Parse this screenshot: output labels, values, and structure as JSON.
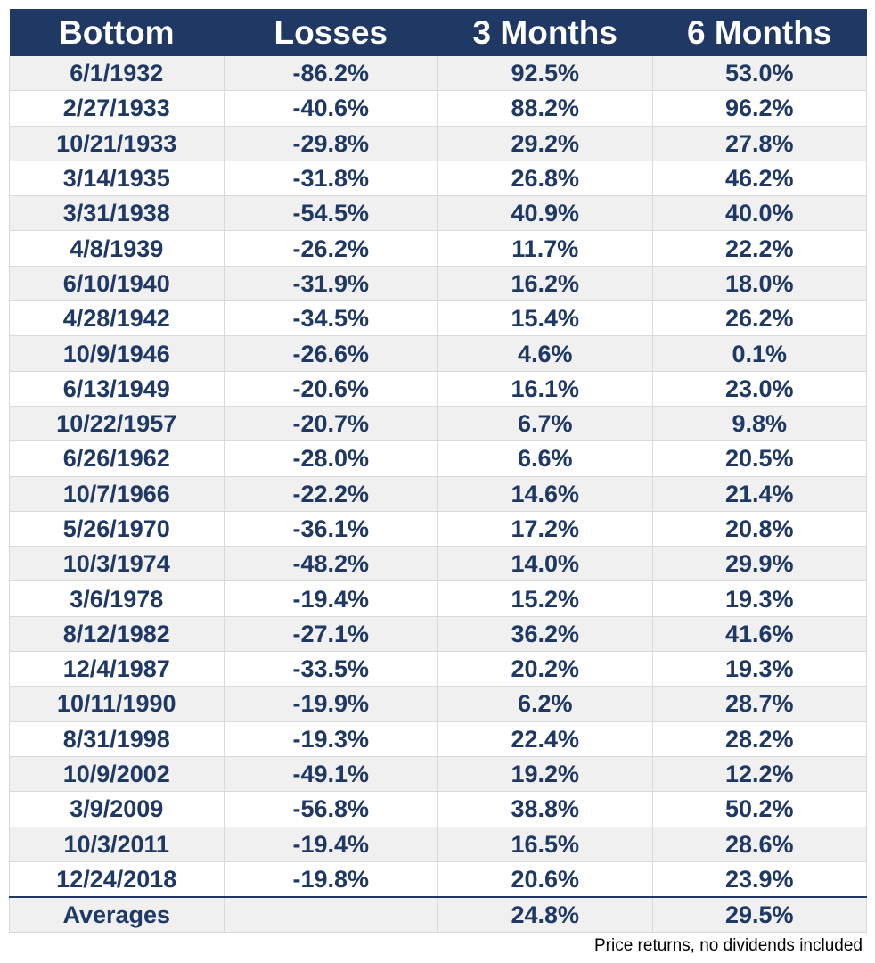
{
  "chart_data": {
    "type": "table",
    "columns": [
      "Bottom",
      "Losses",
      "3 Months",
      "6 Months"
    ],
    "rows": [
      [
        "6/1/1932",
        "-86.2%",
        "92.5%",
        "53.0%"
      ],
      [
        "2/27/1933",
        "-40.6%",
        "88.2%",
        "96.2%"
      ],
      [
        "10/21/1933",
        "-29.8%",
        "29.2%",
        "27.8%"
      ],
      [
        "3/14/1935",
        "-31.8%",
        "26.8%",
        "46.2%"
      ],
      [
        "3/31/1938",
        "-54.5%",
        "40.9%",
        "40.0%"
      ],
      [
        "4/8/1939",
        "-26.2%",
        "11.7%",
        "22.2%"
      ],
      [
        "6/10/1940",
        "-31.9%",
        "16.2%",
        "18.0%"
      ],
      [
        "4/28/1942",
        "-34.5%",
        "15.4%",
        "26.2%"
      ],
      [
        "10/9/1946",
        "-26.6%",
        "4.6%",
        "0.1%"
      ],
      [
        "6/13/1949",
        "-20.6%",
        "16.1%",
        "23.0%"
      ],
      [
        "10/22/1957",
        "-20.7%",
        "6.7%",
        "9.8%"
      ],
      [
        "6/26/1962",
        "-28.0%",
        "6.6%",
        "20.5%"
      ],
      [
        "10/7/1966",
        "-22.2%",
        "14.6%",
        "21.4%"
      ],
      [
        "5/26/1970",
        "-36.1%",
        "17.2%",
        "20.8%"
      ],
      [
        "10/3/1974",
        "-48.2%",
        "14.0%",
        "29.9%"
      ],
      [
        "3/6/1978",
        "-19.4%",
        "15.2%",
        "19.3%"
      ],
      [
        "8/12/1982",
        "-27.1%",
        "36.2%",
        "41.6%"
      ],
      [
        "12/4/1987",
        "-33.5%",
        "20.2%",
        "19.3%"
      ],
      [
        "10/11/1990",
        "-19.9%",
        "6.2%",
        "28.7%"
      ],
      [
        "8/31/1998",
        "-19.3%",
        "22.4%",
        "28.2%"
      ],
      [
        "10/9/2002",
        "-49.1%",
        "19.2%",
        "12.2%"
      ],
      [
        "3/9/2009",
        "-56.8%",
        "38.8%",
        "50.2%"
      ],
      [
        "10/3/2011",
        "-19.4%",
        "16.5%",
        "28.6%"
      ],
      [
        "12/24/2018",
        "-19.8%",
        "20.6%",
        "23.9%"
      ]
    ],
    "footer_row": [
      "Averages",
      "",
      "24.8%",
      "29.5%"
    ],
    "note": "Price returns, no dividends included",
    "colors": {
      "header_bg": "#1f3864",
      "header_text": "#ffffff",
      "cell_text": "#1f3864",
      "row_shade": "#f0f0f0",
      "row_plain": "#ffffff"
    }
  }
}
